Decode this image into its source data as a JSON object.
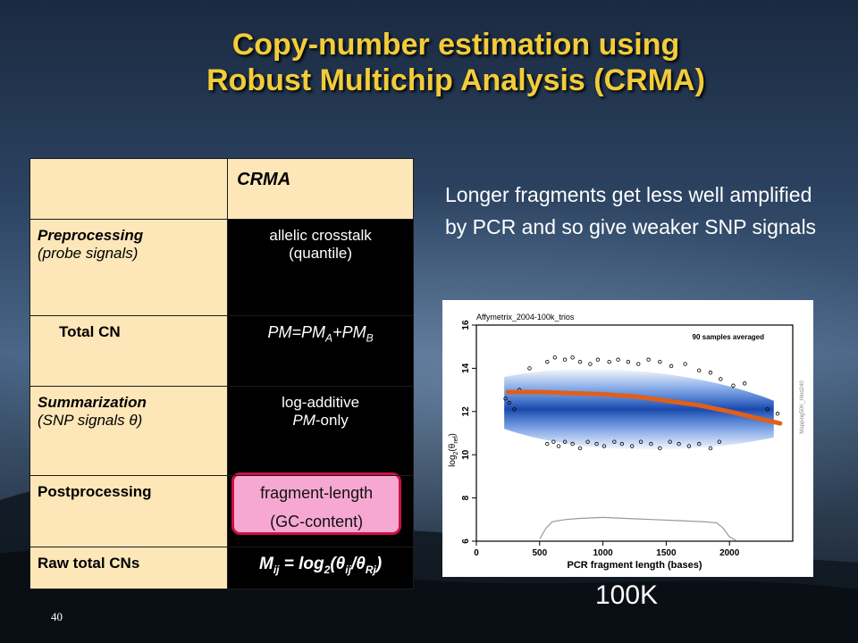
{
  "slide": {
    "title_line1": "Copy-number estimation using",
    "title_line2": "Robust Multichip Analysis (CRMA)",
    "number": "40"
  },
  "table": {
    "header": "CRMA",
    "rows": [
      {
        "label": "Preprocessing",
        "sub": "(probe signals)",
        "value1": "allelic crosstalk",
        "value2": "(quantile)"
      },
      {
        "label": "Total CN",
        "value_prefix": "PM=PM",
        "value_sub_a": "A",
        "value_mid": "+PM",
        "value_sub_b": "B"
      },
      {
        "label": "Summarization",
        "sub_prefix": "(SNP signals ",
        "sub_symbol": "θ",
        "sub_suffix": ")",
        "value1": "log-additive",
        "value2_italic": "PM",
        "value2_rest": "-only"
      },
      {
        "label": "Postprocessing",
        "value1": "fragment-length",
        "value2": "(GC-content)"
      },
      {
        "label": "Raw total CNs",
        "m": "M",
        "m_sub": "ij",
        "eq": " = log",
        "log_sub": "2",
        "open": "(",
        "theta1": "θ",
        "theta1_sub": "ij",
        "slash": "/",
        "theta2": "θ",
        "theta2_sub": "Rj",
        "close": ")"
      }
    ]
  },
  "description": "Longer fragments get less well amplified by PCR and so give weaker SNP signals",
  "chart_caption": "100K",
  "chart_data": {
    "type": "scatter",
    "title": "Affymetrix_2004-100k_trios",
    "annotation": "90 samples averaged",
    "side_label": "Mapping50K_Hind240",
    "xlabel": "PCR fragment length (bases)",
    "ylabel_prefix": "log",
    "ylabel_sub": "2",
    "ylabel_open": "(",
    "ylabel_theta": "θ",
    "ylabel_theta_sub": "ref",
    "ylabel_close": ")",
    "xlim": [
      0,
      2500
    ],
    "ylim": [
      6,
      16
    ],
    "xticks": [
      "0",
      "500",
      "1000",
      "1500",
      "2000"
    ],
    "xtick_values": [
      0,
      500,
      1000,
      1500,
      2000
    ],
    "yticks": [
      "6",
      "8",
      "10",
      "12",
      "14",
      "16"
    ],
    "ytick_values": [
      6,
      8,
      10,
      12,
      14,
      16
    ],
    "density_band": {
      "x": [
        220,
        2350
      ],
      "y_low": 10.0,
      "y_high": 14.0
    },
    "fit_line": {
      "x": [
        250,
        500,
        750,
        1000,
        1250,
        1500,
        1750,
        2000,
        2250,
        2400
      ],
      "y": [
        12.9,
        12.9,
        12.85,
        12.8,
        12.7,
        12.5,
        12.3,
        12.0,
        11.65,
        11.45
      ]
    },
    "distribution_curve": {
      "x": [
        500,
        550,
        600,
        700,
        800,
        1000,
        1200,
        1400,
        1600,
        1800,
        1900,
        1950,
        2000,
        2050
      ],
      "y": [
        6.1,
        6.6,
        6.9,
        7.0,
        7.05,
        7.1,
        7.05,
        7.0,
        6.95,
        6.9,
        6.85,
        6.6,
        6.2,
        6.05
      ]
    },
    "outliers": [
      [
        230,
        12.6
      ],
      [
        260,
        12.4
      ],
      [
        300,
        12.1
      ],
      [
        340,
        13.0
      ],
      [
        420,
        14.0
      ],
      [
        560,
        14.3
      ],
      [
        620,
        14.5
      ],
      [
        700,
        14.4
      ],
      [
        760,
        14.5
      ],
      [
        820,
        14.3
      ],
      [
        900,
        14.2
      ],
      [
        960,
        14.4
      ],
      [
        1050,
        14.3
      ],
      [
        1120,
        14.4
      ],
      [
        1200,
        14.3
      ],
      [
        1280,
        14.2
      ],
      [
        1360,
        14.4
      ],
      [
        1450,
        14.3
      ],
      [
        1540,
        14.1
      ],
      [
        1650,
        14.2
      ],
      [
        1760,
        13.9
      ],
      [
        1850,
        13.8
      ],
      [
        1930,
        13.5
      ],
      [
        2030,
        13.2
      ],
      [
        2120,
        13.3
      ],
      [
        2300,
        12.1
      ],
      [
        2380,
        11.9
      ],
      [
        560,
        10.5
      ],
      [
        610,
        10.6
      ],
      [
        650,
        10.4
      ],
      [
        700,
        10.6
      ],
      [
        760,
        10.5
      ],
      [
        820,
        10.3
      ],
      [
        880,
        10.6
      ],
      [
        950,
        10.5
      ],
      [
        1010,
        10.4
      ],
      [
        1090,
        10.6
      ],
      [
        1150,
        10.5
      ],
      [
        1230,
        10.4
      ],
      [
        1300,
        10.6
      ],
      [
        1380,
        10.5
      ],
      [
        1450,
        10.3
      ],
      [
        1530,
        10.6
      ],
      [
        1600,
        10.5
      ],
      [
        1680,
        10.4
      ],
      [
        1760,
        10.5
      ],
      [
        1850,
        10.3
      ],
      [
        1920,
        10.6
      ]
    ],
    "colors": {
      "fit": "#e0601a",
      "band": "#1c5fd1",
      "curve": "#999999"
    }
  }
}
